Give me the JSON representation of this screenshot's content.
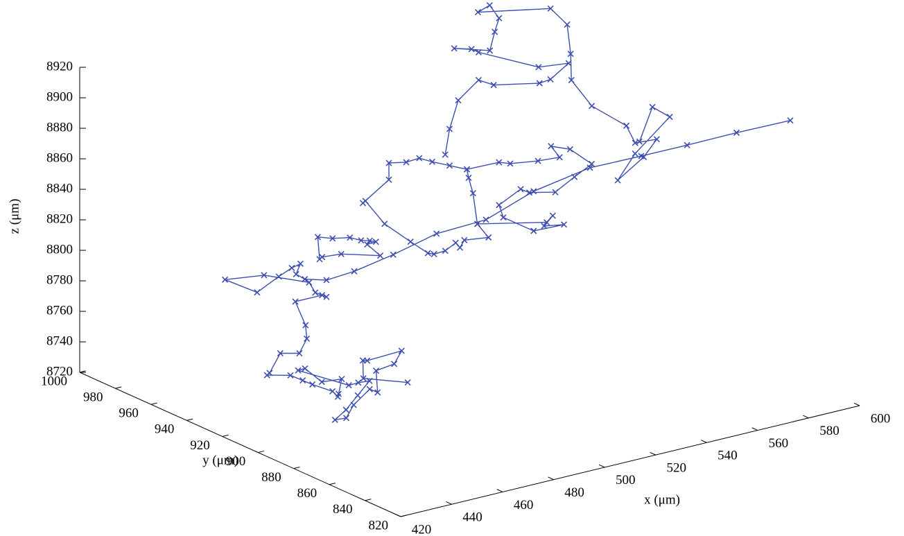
{
  "chart_data": {
    "type": "line3d",
    "xlabel": "x (μm)",
    "ylabel": "y (μm)",
    "zlabel": "z (μm)",
    "xlim": [
      420,
      600
    ],
    "xticks": [
      420,
      440,
      460,
      480,
      500,
      520,
      540,
      560,
      580,
      600
    ],
    "ylim": [
      820,
      1000
    ],
    "yticks": [
      820,
      840,
      860,
      880,
      900,
      920,
      940,
      960,
      980,
      1000
    ],
    "zlim": [
      8720,
      8920
    ],
    "zticks": [
      8720,
      8740,
      8760,
      8780,
      8800,
      8820,
      8840,
      8860,
      8880,
      8900,
      8920
    ],
    "grid": false,
    "series": [
      {
        "color": "#3d4fae",
        "marker": "x",
        "x": [
          584,
          572,
          561,
          550,
          539,
          526,
          515,
          504,
          494,
          485,
          479,
          474,
          472,
          473,
          471,
          468,
          463,
          456,
          465,
          475,
          476,
          479,
          478,
          471,
          468,
          465,
          460,
          456,
          449,
          448,
          453,
          455,
          456,
          459,
          459,
          460,
          464,
          459,
          458,
          456,
          464,
          467,
          470,
          464,
          458,
          453,
          456,
          461,
          468,
          469,
          474,
          479,
          484,
          474,
          473,
          469,
          478,
          null,
          477,
          477,
          480,
          484,
          487,
          489,
          490,
          488,
          491,
          482,
          478,
          null,
          487,
          493,
          493,
          497,
          500,
          503,
          507,
          511,
          511,
          512,
          513,
          516,
          510,
          509,
          508,
          506,
          503,
          502,
          498,
          492,
          488,
          null,
          513,
          529,
          530,
          528,
          533,
          526,
          519,
          518,
          523,
          525,
          531,
          535,
          539,
          534,
          530,
          532,
          527,
          521,
          518,
          511,
          null,
          506,
          507,
          509,
          524,
          525,
          536,
          541,
          553,
          544,
          538,
          538,
          534,
          541,
          552,
          560,
          564,
          558,
          576,
          572,
          558,
          545,
          539,
          547,
          549,
          554,
          551,
          545,
          549,
          557,
          553,
          550
        ],
        "y": [
          836,
          849,
          861,
          871,
          884,
          897,
          908,
          920,
          930,
          939,
          946,
          951,
          953,
          952,
          954,
          957,
          962,
          970,
          961,
          950,
          948,
          946,
          947,
          952,
          942,
          937,
          934,
          939,
          935,
          935,
          929,
          925,
          921,
          914,
          911,
          912,
          916,
          920,
          928,
          929,
          912,
          911,
          909,
          907,
          905,
          904,
          902,
          905,
          906,
          903,
          911,
          908,
          911,
          916,
          917,
          911,
          899,
          null,
          947,
          948,
          944,
          940,
          938,
          936,
          934,
          936,
          933,
          942,
          947,
          null,
          937,
          931,
          931,
          927,
          924,
          921,
          917,
          913,
          912,
          911,
          910,
          908,
          913,
          914,
          915,
          918,
          920,
          922,
          926,
          932,
          937,
          null,
          910,
          894,
          892,
          894,
          890,
          897,
          904,
          905,
          900,
          898,
          892,
          887,
          883,
          888,
          893,
          891,
          896,
          903,
          905,
          913,
          null,
          918,
          917,
          915,
          925,
          918,
          908,
          909,
          916,
          920,
          945,
          949,
          953,
          943,
          956,
          965,
          976,
          974,
          959,
          944,
          922,
          903,
          883,
          875,
          873,
          868,
          871,
          877,
          873,
          865,
          869,
          872
        ],
        "z": [
          8905,
          8895,
          8885,
          8877,
          8867,
          8850,
          8830,
          8819,
          8804,
          8792,
          8785,
          8785,
          8788,
          8795,
          8792,
          8786,
          8775,
          8782,
          8786,
          8783,
          8777,
          8774,
          8775,
          8771,
          8762,
          8757,
          8751,
          8750,
          8742,
          8741,
          8742,
          8740,
          8739,
          8737,
          8735,
          8736,
          8742,
          8740,
          8745,
          8744,
          8740,
          8741,
          8742,
          8736,
          8730,
          8726,
          8727,
          8732,
          8739,
          8738,
          8746,
          8750,
          8755,
          8750,
          8750,
          8743,
          8743,
          null,
          8799,
          8813,
          8813,
          8814,
          8812,
          8812,
          8812,
          8810,
          8803,
          8803,
          8800,
          null,
          8837,
          8853,
          8864,
          8865,
          8868,
          8866,
          8864,
          8862,
          8857,
          8847,
          8827,
          8818,
          8816,
          8811,
          8814,
          8808,
          8806,
          8806,
          8813,
          8824,
          8838,
          null,
          8827,
          8830,
          8835,
          8828,
          8829,
          8824,
          8832,
          8840,
          8851,
          8849,
          8850,
          8861,
          8870,
          8879,
          8880,
          8873,
          8870,
          8867,
          8868,
          8862,
          null,
          8871,
          8888,
          8907,
          8909,
          8909,
          8911,
          8911,
          8913,
          8912,
          8911,
          8911,
          8911,
          8912,
          8913,
          8914,
          8915,
          8914,
          8917,
          8916,
          8914,
          8912,
          8908,
          8896,
          8885,
          8888,
          8876,
          8860,
          8878,
          8903,
          8909,
          8886
        ]
      }
    ]
  }
}
